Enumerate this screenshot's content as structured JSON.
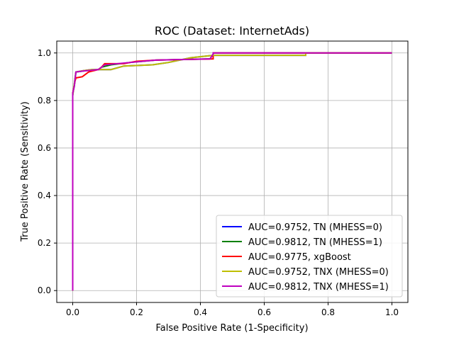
{
  "chart_data": {
    "type": "line",
    "title": "ROC (Dataset: InternetAds)",
    "xlabel": "False Positive Rate (1-Specificity)",
    "ylabel": "True Positive Rate (Sensitivity)",
    "xlim": [
      -0.05,
      1.05
    ],
    "ylim": [
      -0.05,
      1.05
    ],
    "xticks": [
      0.0,
      0.2,
      0.4,
      0.6,
      0.8,
      1.0
    ],
    "xtick_labels": [
      "0.0",
      "0.2",
      "0.4",
      "0.6",
      "0.8",
      "1.0"
    ],
    "yticks": [
      0.0,
      0.2,
      0.4,
      0.6,
      0.8,
      1.0
    ],
    "ytick_labels": [
      "0.0",
      "0.2",
      "0.4",
      "0.6",
      "0.8",
      "1.0"
    ],
    "grid": true,
    "legend_position": "bottom-right",
    "series": [
      {
        "name": "AUC=0.9752, TN (MHESS=0)",
        "color": "#0000ff",
        "points": [
          [
            0,
            0
          ],
          [
            0,
            0.7
          ],
          [
            0,
            0.82
          ],
          [
            0.003,
            0.85
          ],
          [
            0.006,
            0.88
          ],
          [
            0.01,
            0.92
          ],
          [
            0.03,
            0.925
          ],
          [
            0.06,
            0.93
          ],
          [
            0.12,
            0.93
          ],
          [
            0.16,
            0.945
          ],
          [
            0.25,
            0.95
          ],
          [
            0.3,
            0.96
          ],
          [
            0.37,
            0.98
          ],
          [
            0.44,
            0.99
          ],
          [
            0.73,
            0.99
          ],
          [
            0.73,
            1.0
          ],
          [
            1.0,
            1.0
          ]
        ]
      },
      {
        "name": "AUC=0.9812, TN (MHESS=1)",
        "color": "#008000",
        "points": [
          [
            0,
            0
          ],
          [
            0,
            0.7
          ],
          [
            0,
            0.83
          ],
          [
            0.005,
            0.86
          ],
          [
            0.01,
            0.92
          ],
          [
            0.04,
            0.925
          ],
          [
            0.08,
            0.93
          ],
          [
            0.09,
            0.94
          ],
          [
            0.12,
            0.95
          ],
          [
            0.18,
            0.96
          ],
          [
            0.26,
            0.97
          ],
          [
            0.43,
            0.975
          ],
          [
            0.44,
            0.995
          ],
          [
            0.44,
            1.0
          ],
          [
            1.0,
            1.0
          ]
        ]
      },
      {
        "name": "AUC=0.9775, xgBoost",
        "color": "#ff0000",
        "points": [
          [
            0,
            0
          ],
          [
            0,
            0.7
          ],
          [
            0,
            0.83
          ],
          [
            0.004,
            0.86
          ],
          [
            0.007,
            0.88
          ],
          [
            0.01,
            0.895
          ],
          [
            0.03,
            0.9
          ],
          [
            0.04,
            0.91
          ],
          [
            0.05,
            0.92
          ],
          [
            0.08,
            0.93
          ],
          [
            0.09,
            0.94
          ],
          [
            0.1,
            0.955
          ],
          [
            0.16,
            0.955
          ],
          [
            0.2,
            0.965
          ],
          [
            0.26,
            0.97
          ],
          [
            0.44,
            0.975
          ],
          [
            0.44,
            1.0
          ],
          [
            1.0,
            1.0
          ]
        ]
      },
      {
        "name": "AUC=0.9752, TNX (MHESS=0)",
        "color": "#bfbf00",
        "points": [
          [
            0,
            0
          ],
          [
            0,
            0.7
          ],
          [
            0,
            0.82
          ],
          [
            0.003,
            0.85
          ],
          [
            0.006,
            0.88
          ],
          [
            0.01,
            0.92
          ],
          [
            0.03,
            0.925
          ],
          [
            0.06,
            0.93
          ],
          [
            0.12,
            0.93
          ],
          [
            0.16,
            0.945
          ],
          [
            0.25,
            0.95
          ],
          [
            0.3,
            0.96
          ],
          [
            0.37,
            0.98
          ],
          [
            0.44,
            0.99
          ],
          [
            0.73,
            0.99
          ],
          [
            0.73,
            1.0
          ],
          [
            1.0,
            1.0
          ]
        ]
      },
      {
        "name": "AUC=0.9812, TNX (MHESS=1)",
        "color": "#bf00bf",
        "points": [
          [
            0,
            0
          ],
          [
            0,
            0.7
          ],
          [
            0,
            0.83
          ],
          [
            0.005,
            0.86
          ],
          [
            0.01,
            0.92
          ],
          [
            0.04,
            0.925
          ],
          [
            0.08,
            0.93
          ],
          [
            0.09,
            0.94
          ],
          [
            0.1,
            0.95
          ],
          [
            0.18,
            0.96
          ],
          [
            0.26,
            0.97
          ],
          [
            0.43,
            0.975
          ],
          [
            0.44,
            0.995
          ],
          [
            0.44,
            1.0
          ],
          [
            1.0,
            1.0
          ]
        ]
      }
    ]
  }
}
